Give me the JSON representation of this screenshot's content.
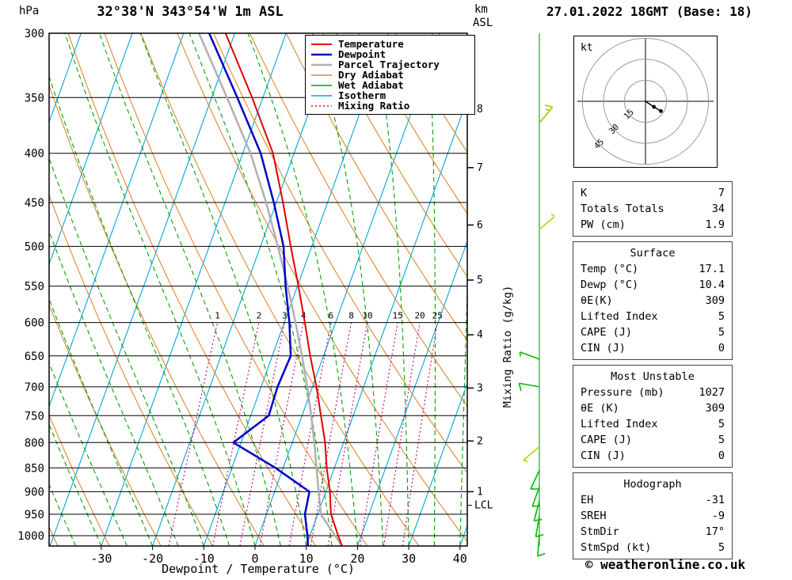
{
  "header": {
    "station_title": "32°38'N 343°54'W 1m ASL",
    "run_label": "27.01.2022 18GMT (Base: 18)"
  },
  "axes": {
    "pressure_unit": "hPa",
    "altitude_unit_line1": "km",
    "altitude_unit_line2": "ASL",
    "xlabel": "Dewpoint / Temperature (°C)",
    "mixing_axis_label": "Mixing Ratio (g/kg)",
    "pressure_ticks": [
      300,
      350,
      400,
      450,
      500,
      550,
      600,
      650,
      700,
      750,
      800,
      850,
      900,
      950,
      1000
    ],
    "temp_ticks": [
      -30,
      -20,
      -10,
      0,
      10,
      20,
      30,
      40
    ],
    "km_ticks": [
      {
        "km": 8,
        "p": 360
      },
      {
        "km": 7,
        "p": 414
      },
      {
        "km": 6,
        "p": 475
      },
      {
        "km": 5,
        "p": 542
      },
      {
        "km": 4,
        "p": 618
      },
      {
        "km": 3,
        "p": 702
      },
      {
        "km": 2,
        "p": 797
      },
      {
        "km": 1,
        "p": 900
      }
    ],
    "lcl": {
      "label": "LCL",
      "p": 930
    }
  },
  "legend": [
    {
      "label": "Temperature",
      "color": "#e00000",
      "width": 2,
      "dash": ""
    },
    {
      "label": "Dewpoint",
      "color": "#0000c8",
      "width": 2.5,
      "dash": ""
    },
    {
      "label": "Parcel Trajectory",
      "color": "#b0b0b0",
      "width": 2.5,
      "dash": ""
    },
    {
      "label": "Dry Adiabat",
      "color": "#dd8833",
      "width": 1.4,
      "dash": ""
    },
    {
      "label": "Wet Adiabat",
      "color": "#00a400",
      "width": 1.4,
      "dash": ""
    },
    {
      "label": "Isotherm",
      "color": "#00a6d8",
      "width": 1.4,
      "dash": ""
    },
    {
      "label": "Mixing Ratio",
      "color": "#c4007a",
      "width": 1.4,
      "dash": "2,3"
    }
  ],
  "chart_data": {
    "type": "line",
    "subtype": "skew-t log-p sounding",
    "pressure_range": [
      300,
      1025
    ],
    "temp_axis_range": [
      -40,
      42
    ],
    "isotherm_step": 10,
    "dry_adiabat_step": 10,
    "wet_adiabat_step": 5,
    "mixing_ratio_values": [
      1,
      2,
      3,
      4,
      6,
      8,
      10,
      15,
      20,
      25
    ],
    "sounding": {
      "pressure": [
        1027,
        1000,
        950,
        900,
        850,
        800,
        750,
        700,
        650,
        600,
        550,
        500,
        450,
        400,
        350,
        300
      ],
      "temperature": [
        17.1,
        15.5,
        12.6,
        10.8,
        8.5,
        6.4,
        3.7,
        0.8,
        -2.6,
        -6.0,
        -9.8,
        -14.1,
        -18.7,
        -24.1,
        -32.1,
        -41.8
      ],
      "dewpoint": [
        10.4,
        9.5,
        7.5,
        6.8,
        -1.5,
        -11.5,
        -6.5,
        -6.8,
        -6.4,
        -9.0,
        -12.3,
        -15.5,
        -20.5,
        -26.5,
        -35.0,
        -45.0
      ],
      "parcel": [
        17.1,
        14.9,
        10.6,
        8.6,
        6.5,
        4.3,
        1.8,
        -1.0,
        -4.2,
        -7.8,
        -11.9,
        -16.6,
        -22.0,
        -28.5,
        -37.0,
        -47.0
      ]
    }
  },
  "wind_barbs": [
    {
      "p": 372,
      "dir": 40,
      "spd": 15,
      "color": "#99cc00"
    },
    {
      "p": 480,
      "dir": 50,
      "spd": 5,
      "color": "#cccc00"
    },
    {
      "p": 655,
      "dir": 290,
      "spd": 5,
      "color": "#00bb00"
    },
    {
      "p": 700,
      "dir": 280,
      "spd": 10,
      "color": "#00bb00"
    },
    {
      "p": 808,
      "dir": 230,
      "spd": 5,
      "color": "#cccc00"
    },
    {
      "p": 855,
      "dir": 205,
      "spd": 10,
      "color": "#00bb00"
    },
    {
      "p": 890,
      "dir": 200,
      "spd": 10,
      "color": "#00bb00"
    },
    {
      "p": 920,
      "dir": 195,
      "spd": 10,
      "color": "#00bb00"
    },
    {
      "p": 955,
      "dir": 190,
      "spd": 10,
      "color": "#00bb00"
    },
    {
      "p": 1000,
      "dir": 185,
      "spd": 10,
      "color": "#00bb00"
    }
  ],
  "hodograph": {
    "unit_label": "kt",
    "rings_kt": [
      15,
      30,
      45
    ],
    "trace_kt": [
      [
        0,
        0
      ],
      [
        6,
        4
      ],
      [
        11,
        7
      ]
    ],
    "dot_points_kt": [
      [
        6,
        4
      ],
      [
        11,
        7
      ]
    ]
  },
  "panels": [
    {
      "title": null,
      "rows": [
        [
          "K",
          "7"
        ],
        [
          "Totals Totals",
          "34"
        ],
        [
          "PW (cm)",
          "1.9"
        ]
      ]
    },
    {
      "title": "Surface",
      "rows": [
        [
          "Temp (°C)",
          "17.1"
        ],
        [
          "Dewp (°C)",
          "10.4"
        ],
        [
          "θE(K)",
          "309"
        ],
        [
          "Lifted Index",
          "5"
        ],
        [
          "CAPE (J)",
          "5"
        ],
        [
          "CIN (J)",
          "0"
        ]
      ]
    },
    {
      "title": "Most Unstable",
      "rows": [
        [
          "Pressure (mb)",
          "1027"
        ],
        [
          "θE (K)",
          "309"
        ],
        [
          "Lifted Index",
          "5"
        ],
        [
          "CAPE (J)",
          "5"
        ],
        [
          "CIN (J)",
          "0"
        ]
      ]
    },
    {
      "title": "Hodograph",
      "rows": [
        [
          "EH",
          "-31"
        ],
        [
          "SREH",
          "-9"
        ],
        [
          "StmDir",
          "17°"
        ],
        [
          "StmSpd (kt)",
          "5"
        ]
      ]
    }
  ],
  "footer": {
    "copyright": "© weatheronline.co.uk"
  },
  "colors": {
    "temperature": "#e00000",
    "dewpoint": "#0000c8",
    "parcel": "#b0b0b0",
    "dry_adiabat": "#dd8833",
    "wet_adiabat": "#00a400",
    "isotherm": "#00a6d8",
    "mixing_ratio": "#c4007a",
    "pressure_line": "#000000",
    "barb_column": "#00bb00",
    "hodo_ring": "#999999"
  }
}
